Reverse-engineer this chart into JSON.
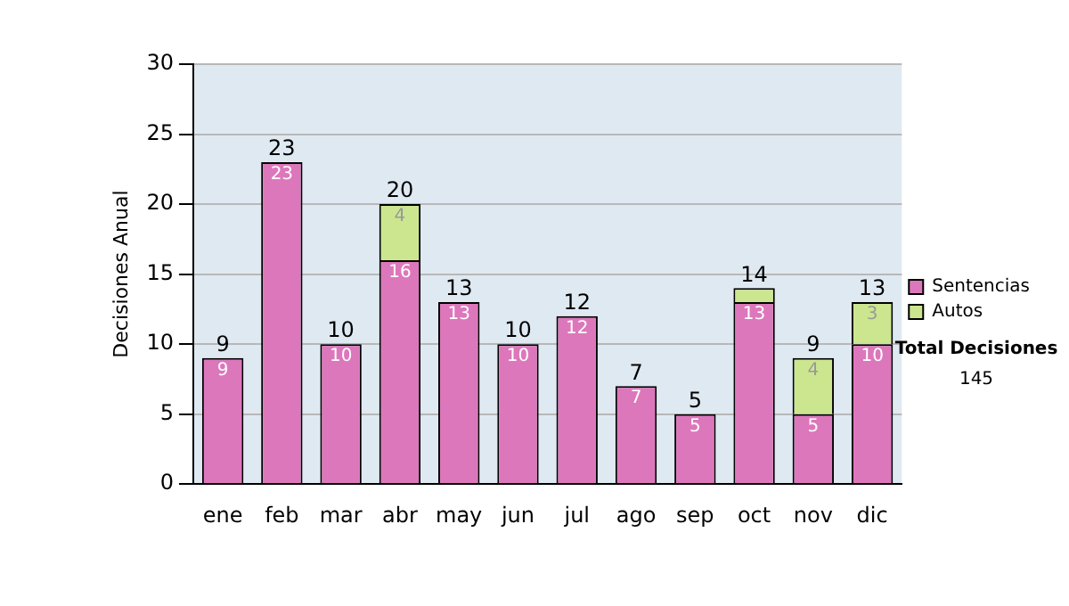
{
  "chart_data": {
    "type": "bar",
    "stacked": true,
    "ylabel": "Decisiones Anual",
    "categories": [
      "ene",
      "feb",
      "mar",
      "abr",
      "may",
      "jun",
      "jul",
      "ago",
      "sep",
      "oct",
      "nov",
      "dic"
    ],
    "series": [
      {
        "name": "Sentencias",
        "color": "#dd77bb",
        "values": [
          9,
          23,
          10,
          16,
          13,
          10,
          12,
          7,
          5,
          13,
          5,
          10
        ],
        "value_labels": [
          "9",
          "23",
          "10",
          "16",
          "13",
          "10",
          "12",
          "7",
          "5",
          "13",
          "5",
          "10"
        ]
      },
      {
        "name": "Autos",
        "color": "#cce68f",
        "values": [
          0,
          0,
          0,
          4,
          0,
          0,
          0,
          0,
          0,
          1,
          4,
          3
        ],
        "value_labels": [
          null,
          null,
          null,
          "4",
          null,
          null,
          null,
          null,
          null,
          null,
          "4",
          "3"
        ]
      }
    ],
    "totals": [
      "9",
      "23",
      "10",
      "20",
      "13",
      "10",
      "12",
      "7",
      "5",
      "14",
      "9",
      "13"
    ],
    "ylim": [
      0,
      30
    ],
    "yticks": [
      0,
      5,
      10,
      15,
      20,
      25,
      30
    ],
    "grid": "y",
    "legend": "right",
    "annotations": [
      "Total Decisiones",
      "145"
    ]
  }
}
